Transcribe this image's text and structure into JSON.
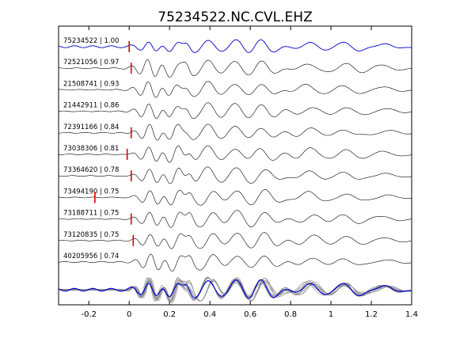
{
  "chart_data": {
    "type": "line",
    "title": "75234522.NC.CVL.EHZ",
    "xlabel": "",
    "ylabel": "",
    "xlim": [
      -0.35,
      1.4
    ],
    "x_ticks": [
      "-0.2",
      "0",
      "0.2",
      "0.4",
      "0.6",
      "0.8",
      "1",
      "1.2",
      "1.4"
    ],
    "x_tick_values": [
      -0.2,
      0,
      0.2,
      0.4,
      0.6,
      0.8,
      1.0,
      1.2,
      1.4
    ],
    "grid": false,
    "legend": "none",
    "colors": {
      "reference": "#0000cc",
      "trace": "#000000",
      "pick": "#dd0000",
      "stack_other": "#8c8c8c"
    },
    "traces": [
      {
        "label": "75234522 | 1.00",
        "pick": 0.0,
        "reference": true
      },
      {
        "label": "72521056 | 0.97",
        "pick": 0.01
      },
      {
        "label": "21508741 | 0.93",
        "pick": null
      },
      {
        "label": "21442911 | 0.86",
        "pick": null
      },
      {
        "label": "72391166 | 0.84",
        "pick": 0.01
      },
      {
        "label": "73038306 | 0.81",
        "pick": -0.01
      },
      {
        "label": "73364620 | 0.78",
        "pick": 0.01
      },
      {
        "label": "73494190 | 0.75",
        "pick": -0.17
      },
      {
        "label": "73188711 | 0.75",
        "pick": 0.01
      },
      {
        "label": "73120835 | 0.75",
        "pick": 0.02
      },
      {
        "label": "40205956 | 0.74",
        "pick": null
      }
    ]
  }
}
